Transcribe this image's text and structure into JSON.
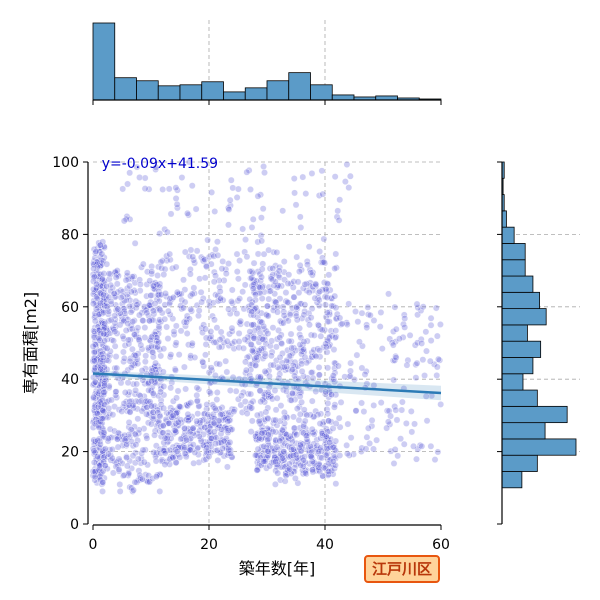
{
  "chart_data": {
    "type": "scatter",
    "xlabel": "築年数[年]",
    "ylabel": "専有面積[m2]",
    "xlim": [
      0,
      60
    ],
    "ylim": [
      0,
      100
    ],
    "xticks": [
      0,
      20,
      40,
      60
    ],
    "yticks": [
      0,
      20,
      40,
      60,
      80,
      100
    ],
    "grid": true,
    "point_color": "#5a5ad6",
    "line_color": "#2c7bb6",
    "hist_color": "#5b9bc8",
    "regression": {
      "slope": -0.09,
      "intercept": 41.59,
      "label": "y=-0.09x+41.59"
    },
    "marginal_x": {
      "bin_edges": [
        0,
        3.75,
        7.5,
        11.25,
        15,
        18.75,
        22.5,
        26.25,
        30,
        33.75,
        37.5,
        41.25,
        45,
        48.75,
        52.5,
        56.25,
        60
      ],
      "heights": [
        76,
        22,
        19,
        14,
        15,
        18,
        8,
        12,
        19,
        27,
        15,
        5,
        3,
        4,
        2,
        1
      ]
    },
    "marginal_y": {
      "bin_edges": [
        10,
        14.5,
        19,
        23.5,
        28,
        32.5,
        37,
        41.5,
        46,
        50.5,
        55,
        59.5,
        64,
        68.5,
        73,
        77.5,
        82,
        86.5,
        91,
        95.5,
        100
      ],
      "widths": [
        18,
        32,
        67,
        39,
        59,
        32,
        19,
        28,
        35,
        23,
        40,
        34,
        28,
        21,
        21,
        11,
        4,
        2,
        1,
        2
      ]
    },
    "points_summary": "dense cloud of several thousand points, x 0–60, y ~9–100"
  },
  "badge": {
    "text": "江戸川区"
  }
}
